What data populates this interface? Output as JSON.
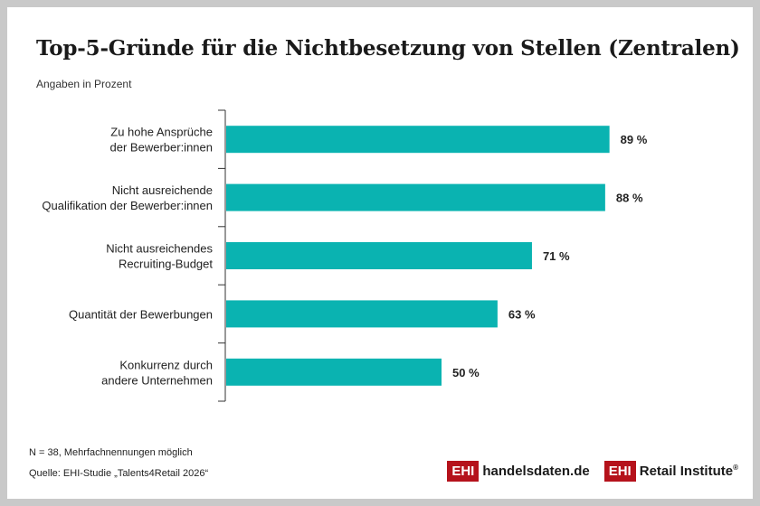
{
  "chart_data": {
    "type": "bar",
    "orientation": "horizontal",
    "title": "Top-5-Gründe für die Nichtbesetzung von Stellen (Zentralen)",
    "subtitle": "Angaben in Prozent",
    "categories": [
      [
        "Zu hohe Ansprüche",
        "der Bewerber:innen"
      ],
      [
        "Nicht ausreichende",
        "Qualifikation der Bewerber:innen"
      ],
      [
        "Nicht ausreichendes",
        "Recruiting-Budget"
      ],
      [
        "Quantität der Bewerbungen"
      ],
      [
        "Konkurrenz durch",
        "andere Unternehmen"
      ]
    ],
    "values": [
      89,
      88,
      71,
      63,
      50
    ],
    "value_labels": [
      "89 %",
      "88 %",
      "71 %",
      "63 %",
      "50 %"
    ],
    "xlim": [
      0,
      100
    ],
    "grid": false,
    "bar_color": "#0ab3b1"
  },
  "footnotes": {
    "n": "N = 38, Mehrfachnennungen möglich",
    "source": "Quelle: EHI-Studie „Talents4Retail 2026“"
  },
  "logos": {
    "logo1_box": "EHI",
    "logo1_text": "handelsdaten.de",
    "logo2_box": "EHI",
    "logo2_text": "Retail Institute",
    "logo2_reg": "®"
  },
  "colors": {
    "brand_red": "#b5121b",
    "bar": "#0ab3b1",
    "frame": "#c9c9c9"
  }
}
